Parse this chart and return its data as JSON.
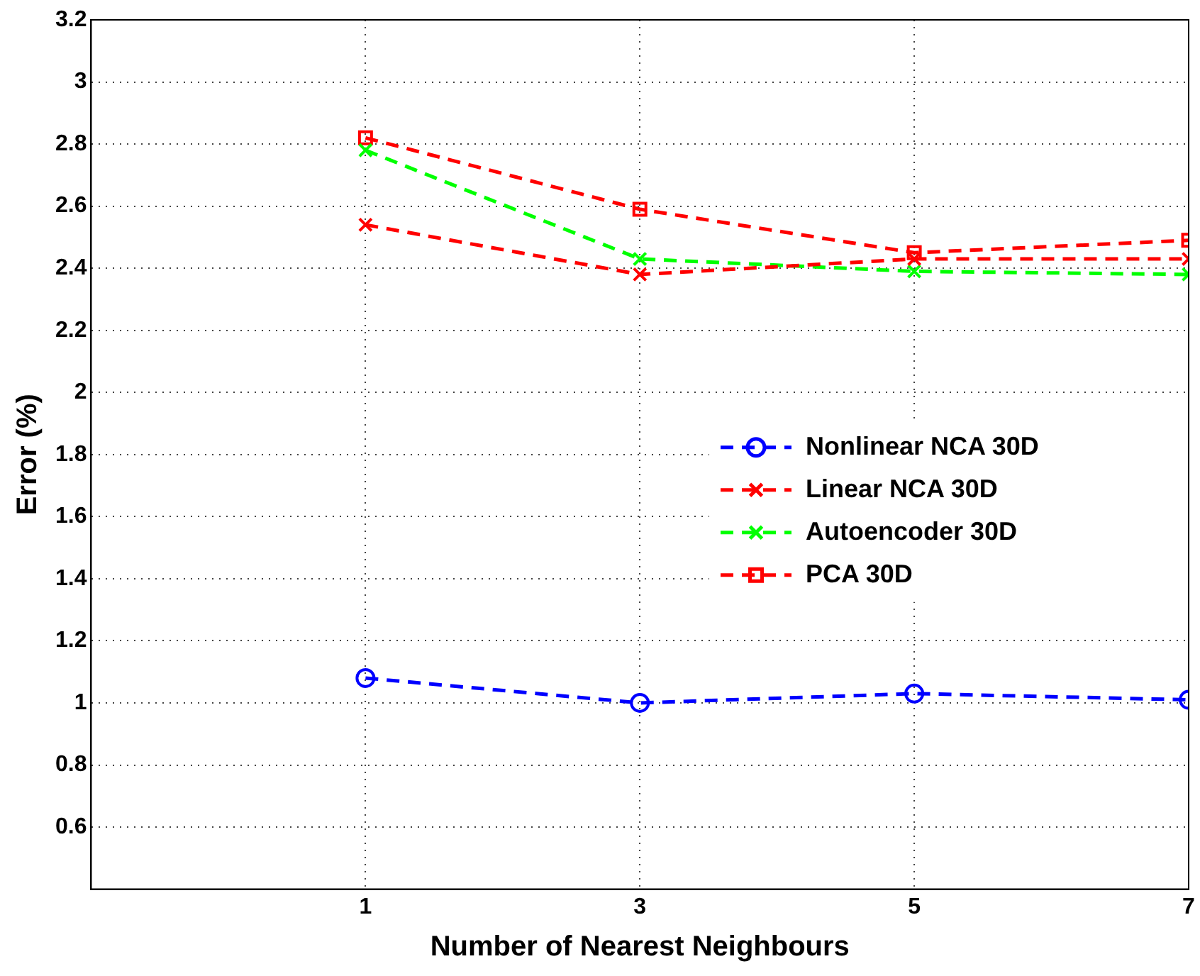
{
  "chart_data": {
    "type": "line",
    "xlabel": "Number of Nearest Neighbours",
    "ylabel": "Error (%)",
    "x": [
      1,
      3,
      5,
      7
    ],
    "xlim": [
      -1,
      7
    ],
    "xticks": [
      1,
      3,
      5,
      7
    ],
    "ylim": [
      0.4,
      3.2
    ],
    "yticks": [
      {
        "value": 0.4,
        "label": null
      },
      0.6,
      0.8,
      1,
      1.2,
      1.4,
      1.6,
      1.8,
      2,
      2.2,
      2.4,
      2.6,
      2.8,
      3,
      3.2
    ],
    "grid": true,
    "legend": "right",
    "line_style": "dashed",
    "series": [
      {
        "name": "Nonlinear NCA 30D",
        "color": "#0000ff",
        "marker": "circle",
        "values": [
          1.08,
          1.0,
          1.03,
          1.01
        ]
      },
      {
        "name": "Linear NCA 30D",
        "color": "#ff0000",
        "marker": "cross",
        "values": [
          2.54,
          2.38,
          2.43,
          2.43
        ]
      },
      {
        "name": "Autoencoder 30D",
        "color": "#00ff00",
        "marker": "cross",
        "values": [
          2.78,
          2.43,
          2.39,
          2.38
        ]
      },
      {
        "name": "PCA 30D",
        "color": "#ff0000",
        "marker": "square",
        "values": [
          2.82,
          2.59,
          2.45,
          2.49
        ]
      }
    ]
  }
}
